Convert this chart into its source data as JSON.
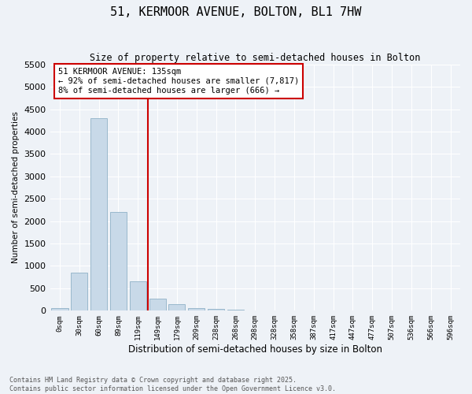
{
  "title1": "51, KERMOOR AVENUE, BOLTON, BL1 7HW",
  "title2": "Size of property relative to semi-detached houses in Bolton",
  "xlabel": "Distribution of semi-detached houses by size in Bolton",
  "ylabel": "Number of semi-detached properties",
  "bin_labels": [
    "0sqm",
    "30sqm",
    "60sqm",
    "89sqm",
    "119sqm",
    "149sqm",
    "179sqm",
    "209sqm",
    "238sqm",
    "268sqm",
    "298sqm",
    "328sqm",
    "358sqm",
    "387sqm",
    "417sqm",
    "447sqm",
    "477sqm",
    "507sqm",
    "536sqm",
    "566sqm",
    "596sqm"
  ],
  "bar_heights": [
    50,
    850,
    4300,
    2200,
    650,
    270,
    140,
    60,
    35,
    20,
    5,
    2,
    1,
    1,
    0,
    0,
    0,
    0,
    0,
    0,
    0
  ],
  "bar_color": "#c8d9e8",
  "bar_edgecolor": "#9ab8cc",
  "red_line_x": 4.5,
  "red_line_label": "51 KERMOOR AVENUE: 135sqm",
  "annotation_line1": "← 92% of semi-detached houses are smaller (7,817)",
  "annotation_line2": "8% of semi-detached houses are larger (666) →",
  "ylim_max": 5500,
  "yticks": [
    0,
    500,
    1000,
    1500,
    2000,
    2500,
    3000,
    3500,
    4000,
    4500,
    5000,
    5500
  ],
  "background_color": "#eef2f7",
  "axes_background": "#eef2f7",
  "grid_color": "#ffffff",
  "footer1": "Contains HM Land Registry data © Crown copyright and database right 2025.",
  "footer2": "Contains public sector information licensed under the Open Government Licence v3.0."
}
